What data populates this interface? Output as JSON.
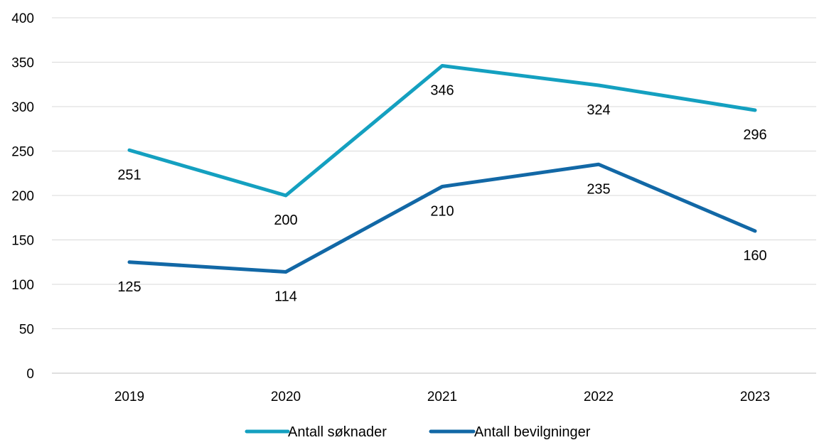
{
  "chart_data": {
    "type": "line",
    "title": "",
    "xlabel": "",
    "ylabel": "",
    "x": [
      "2019",
      "2020",
      "2021",
      "2022",
      "2023"
    ],
    "ylim": [
      0,
      400
    ],
    "yticks": [
      0,
      50,
      100,
      150,
      200,
      250,
      300,
      350,
      400
    ],
    "grid": true,
    "legend_position": "bottom",
    "series": [
      {
        "name": "Antall søknader",
        "color": "#14A0C0",
        "values": [
          251,
          200,
          346,
          324,
          296
        ],
        "labels": [
          "251",
          "200",
          "346",
          "324",
          "296"
        ]
      },
      {
        "name": "Antall bevilgninger",
        "color": "#1268A6",
        "values": [
          125,
          114,
          210,
          235,
          160
        ],
        "labels": [
          "125",
          "114",
          "210",
          "235",
          "160"
        ]
      }
    ]
  }
}
